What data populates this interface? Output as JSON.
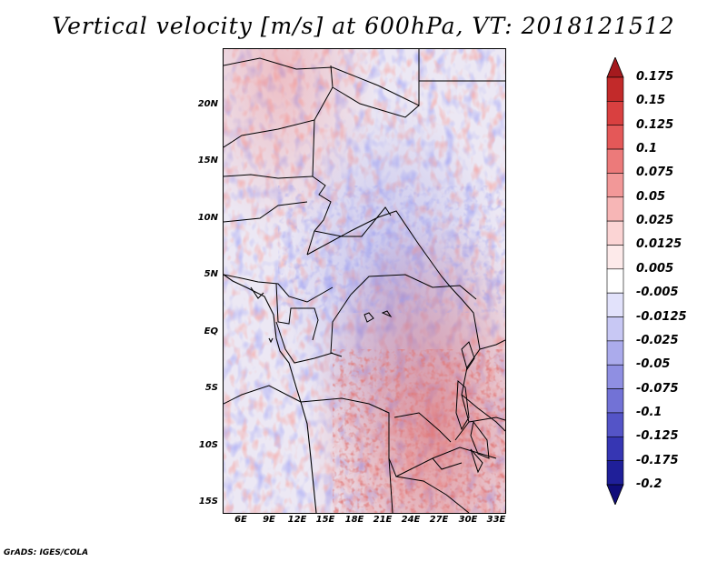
{
  "title": "Vertical velocity [m/s] at 600hPa, VT: 2018121512",
  "credit": "GrADS: IGES/COLA",
  "map": {
    "lat_labels": [
      "20N",
      "15N",
      "10N",
      "5N",
      "EQ",
      "5S",
      "10S",
      "15S"
    ],
    "lon_labels": [
      "6E",
      "9E",
      "12E",
      "15E",
      "18E",
      "21E",
      "24E",
      "27E",
      "30E",
      "33E"
    ],
    "field": "vertical velocity",
    "dominant_pattern": "upward motion (positive) over southern Congo basin / DRC and East African Rift; weak negative over northern Sahel"
  },
  "colorbar": {
    "labels": [
      "0.175",
      "0.15",
      "0.125",
      "0.1",
      "0.075",
      "0.05",
      "0.025",
      "0.0125",
      "0.005",
      "-0.005",
      "-0.0125",
      "-0.025",
      "-0.05",
      "-0.075",
      "-0.1",
      "-0.125",
      "-0.175",
      "-0.2"
    ],
    "colors": [
      "#a51a1e",
      "#c22a2a",
      "#d94040",
      "#e45858",
      "#ec7a7a",
      "#f29898",
      "#f7b6b6",
      "#fbd4d4",
      "#fdeaea",
      "#ffffff",
      "#e2e2fb",
      "#c8c8f4",
      "#ababec",
      "#8f8fe2",
      "#7272d6",
      "#5454c7",
      "#3636b3",
      "#1f1f99",
      "#100d7a"
    ]
  }
}
